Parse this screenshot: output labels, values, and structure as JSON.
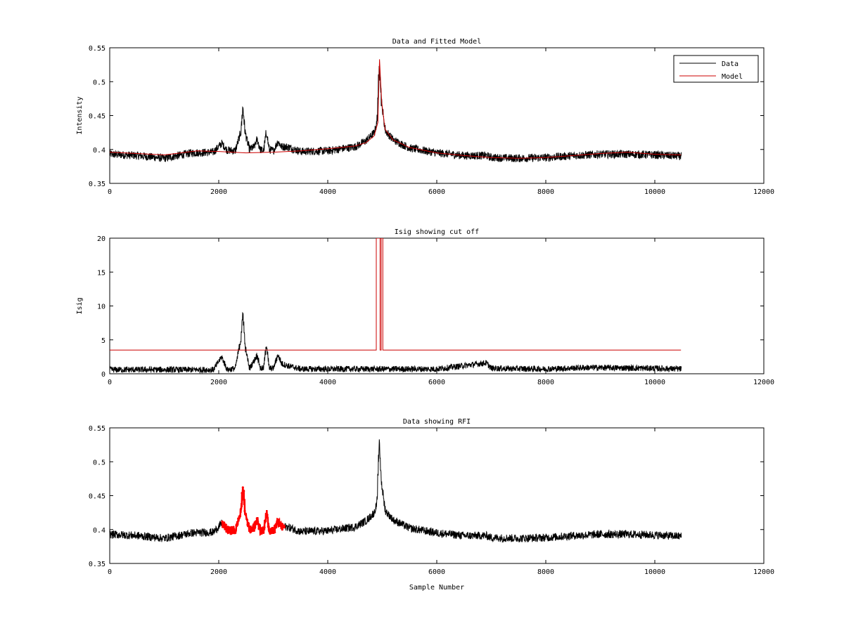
{
  "chart_data": [
    {
      "type": "line",
      "title": "Data and Fitted Model",
      "xlabel": "",
      "ylabel": "Intensity",
      "xlim": [
        0,
        12000
      ],
      "ylim": [
        0.35,
        0.55
      ],
      "xticks": [
        0,
        2000,
        4000,
        6000,
        8000,
        10000,
        12000
      ],
      "yticks": [
        0.35,
        0.4,
        0.45,
        0.5,
        0.55
      ],
      "xtick_labels": [
        "0",
        "2000",
        "4000",
        "6000",
        "8000",
        "10000",
        "12000"
      ],
      "ytick_labels": [
        "0.35",
        "0.4",
        "0.45",
        "0.5",
        "0.55"
      ],
      "grid": false,
      "legend": {
        "position": "top-right",
        "entries": [
          "Data",
          "Model"
        ]
      },
      "series": [
        {
          "name": "Data",
          "color": "#000000",
          "noise": 0.006,
          "x": [
            0,
            500,
            1000,
            1500,
            1900,
            2050,
            2150,
            2300,
            2400,
            2440,
            2480,
            2560,
            2650,
            2700,
            2760,
            2820,
            2870,
            2920,
            3000,
            3080,
            3150,
            3250,
            3500,
            4000,
            4500,
            4700,
            4850,
            4900,
            4940,
            4980,
            5050,
            5200,
            5500,
            6000,
            6500,
            6900,
            7000,
            7500,
            8000,
            8500,
            9000,
            9500,
            10000,
            10480
          ],
          "values": [
            0.393,
            0.391,
            0.387,
            0.395,
            0.396,
            0.409,
            0.399,
            0.398,
            0.425,
            0.462,
            0.425,
            0.4,
            0.404,
            0.415,
            0.4,
            0.398,
            0.427,
            0.4,
            0.398,
            0.412,
            0.404,
            0.404,
            0.397,
            0.398,
            0.404,
            0.413,
            0.425,
            0.44,
            0.53,
            0.47,
            0.428,
            0.414,
            0.402,
            0.395,
            0.391,
            0.391,
            0.388,
            0.387,
            0.388,
            0.391,
            0.393,
            0.393,
            0.392,
            0.39
          ]
        },
        {
          "name": "Model",
          "color": "#cc0000",
          "x": [
            0,
            500,
            1000,
            1600,
            2000,
            2500,
            3000,
            3500,
            4000,
            4500,
            4700,
            4850,
            4920,
            4950,
            4990,
            5050,
            5200,
            5500,
            6000,
            6500,
            7000,
            7500,
            8000,
            8500,
            9000,
            9500,
            10000,
            10480
          ],
          "values": [
            0.396,
            0.394,
            0.392,
            0.398,
            0.397,
            0.395,
            0.396,
            0.398,
            0.401,
            0.405,
            0.41,
            0.42,
            0.44,
            0.533,
            0.47,
            0.43,
            0.414,
            0.403,
            0.395,
            0.391,
            0.388,
            0.387,
            0.388,
            0.391,
            0.394,
            0.396,
            0.393,
            0.392
          ]
        }
      ]
    },
    {
      "type": "line",
      "title": "Isig showing cut off",
      "xlabel": "",
      "ylabel": "Isig",
      "xlim": [
        0,
        12000
      ],
      "ylim": [
        0,
        20
      ],
      "xticks": [
        0,
        2000,
        4000,
        6000,
        8000,
        10000,
        12000
      ],
      "yticks": [
        0,
        5,
        10,
        15,
        20
      ],
      "xtick_labels": [
        "0",
        "2000",
        "4000",
        "6000",
        "8000",
        "10000",
        "12000"
      ],
      "ytick_labels": [
        "0",
        "5",
        "10",
        "15",
        "20"
      ],
      "grid": false,
      "series": [
        {
          "color": "#000000",
          "noise": 0.45,
          "x": [
            0,
            500,
            1000,
            1500,
            1900,
            2050,
            2150,
            2300,
            2350,
            2400,
            2440,
            2480,
            2560,
            2650,
            2700,
            2760,
            2820,
            2870,
            2920,
            3000,
            3080,
            3150,
            3250,
            3500,
            4000,
            5000,
            6000,
            6900,
            7000,
            8000,
            8700,
            9000,
            10000,
            10480
          ],
          "values": [
            0.6,
            0.6,
            0.6,
            0.6,
            0.6,
            2.5,
            0.6,
            0.8,
            3.0,
            5.0,
            9.0,
            4.0,
            0.8,
            2.0,
            2.8,
            0.8,
            0.8,
            4.5,
            0.8,
            0.8,
            2.8,
            1.5,
            1.2,
            0.7,
            0.7,
            0.7,
            0.7,
            1.6,
            0.8,
            0.7,
            0.9,
            0.9,
            0.8,
            0.7
          ]
        },
        {
          "color": "#cc0000",
          "x": [
            0,
            4890,
            4890,
            4960,
            4960,
            4980,
            4980,
            5010,
            5010,
            10480
          ],
          "values": [
            3.5,
            3.5,
            20,
            20,
            3.5,
            3.5,
            20,
            20,
            3.5,
            3.5
          ]
        }
      ]
    },
    {
      "type": "line",
      "title": "Data showing RFI",
      "xlabel": "Sample Number",
      "ylabel": "",
      "xlim": [
        0,
        12000
      ],
      "ylim": [
        0.35,
        0.55
      ],
      "xticks": [
        0,
        2000,
        4000,
        6000,
        8000,
        10000,
        12000
      ],
      "yticks": [
        0.35,
        0.4,
        0.45,
        0.5,
        0.55
      ],
      "xtick_labels": [
        "0",
        "2000",
        "4000",
        "6000",
        "8000",
        "10000",
        "12000"
      ],
      "ytick_labels": [
        "0.35",
        "0.4",
        "0.45",
        "0.5",
        "0.55"
      ],
      "grid": false,
      "highlight": {
        "color": "#ff0000",
        "range": [
          2060,
          3200
        ]
      },
      "series": [
        {
          "color": "#000000",
          "noise": 0.006,
          "x": [
            0,
            500,
            1000,
            1500,
            1900,
            2050,
            2150,
            2300,
            2400,
            2440,
            2480,
            2560,
            2650,
            2700,
            2760,
            2820,
            2870,
            2920,
            3000,
            3080,
            3150,
            3250,
            3500,
            4000,
            4500,
            4700,
            4850,
            4900,
            4940,
            4980,
            5050,
            5200,
            5500,
            6000,
            6500,
            6900,
            7000,
            7500,
            8000,
            8500,
            9000,
            9500,
            10000,
            10480
          ],
          "values": [
            0.393,
            0.391,
            0.387,
            0.395,
            0.396,
            0.409,
            0.399,
            0.398,
            0.425,
            0.462,
            0.425,
            0.4,
            0.404,
            0.415,
            0.4,
            0.398,
            0.427,
            0.4,
            0.398,
            0.412,
            0.404,
            0.404,
            0.397,
            0.398,
            0.404,
            0.413,
            0.425,
            0.44,
            0.53,
            0.47,
            0.428,
            0.414,
            0.402,
            0.395,
            0.391,
            0.391,
            0.388,
            0.387,
            0.388,
            0.391,
            0.393,
            0.393,
            0.392,
            0.39
          ]
        }
      ]
    }
  ]
}
